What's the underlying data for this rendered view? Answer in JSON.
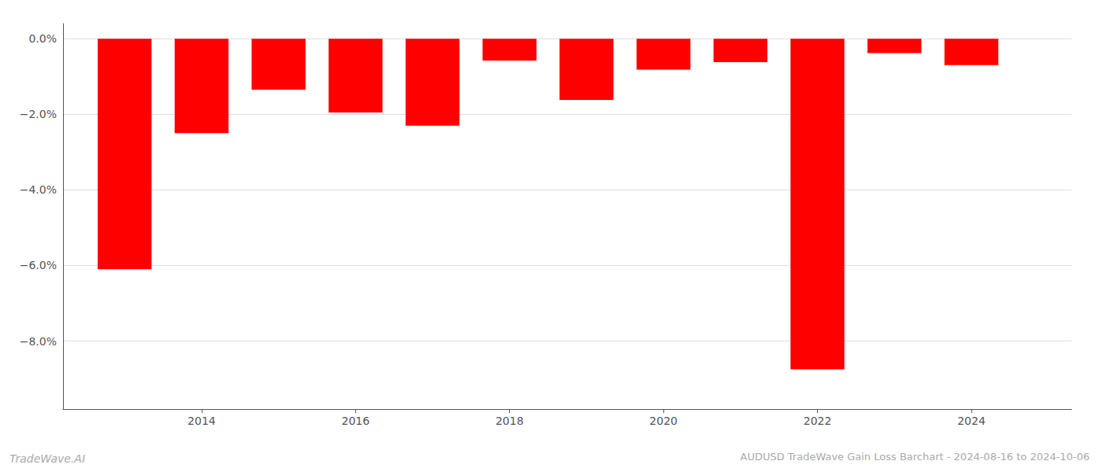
{
  "chart_data": {
    "type": "bar",
    "title": "AUDUSD TradeWave Gain Loss Barchart - 2024-08-16 to 2024-10-06",
    "annotations": [
      "TradeWave.AI"
    ],
    "x": [
      2013,
      2014,
      2015,
      2016,
      2017,
      2018,
      2019,
      2020,
      2021,
      2022,
      2023,
      2024
    ],
    "values": [
      -6.1,
      -2.5,
      -1.35,
      -1.95,
      -2.3,
      -0.58,
      -1.62,
      -0.82,
      -0.62,
      -8.75,
      -0.38,
      -0.7
    ],
    "color": "#ff0000",
    "xlim": [
      2012.2,
      2025.3
    ],
    "xticks": [
      2014,
      2016,
      2018,
      2020,
      2022,
      2024
    ],
    "ylim": [
      -9.8,
      0.4
    ],
    "yticks": [
      {
        "value": 0.0,
        "label": "0.0%"
      },
      {
        "value": -2.0,
        "label": "−2.0%"
      },
      {
        "value": -4.0,
        "label": "−4.0%"
      },
      {
        "value": -6.0,
        "label": "−6.0%"
      },
      {
        "value": -8.0,
        "label": "−8.0%"
      }
    ],
    "grid": true
  }
}
